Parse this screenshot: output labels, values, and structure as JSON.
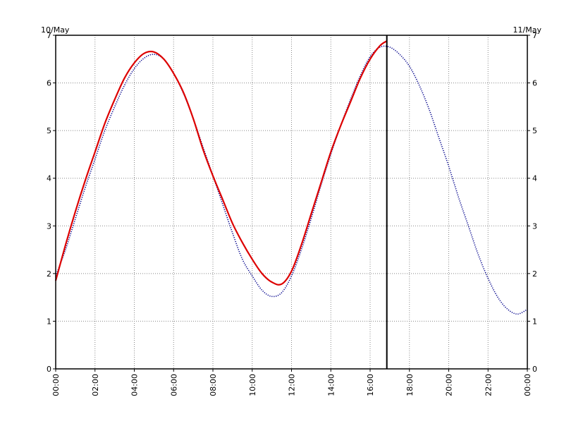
{
  "chart_data": {
    "type": "line",
    "date_left": "10/May",
    "date_right": "11/May",
    "xlim": [
      0,
      24
    ],
    "ylim": [
      0,
      7
    ],
    "x_ticks": [
      "00:00",
      "02:00",
      "04:00",
      "06:00",
      "08:00",
      "10:00",
      "12:00",
      "14:00",
      "16:00",
      "18:00",
      "20:00",
      "22:00",
      "00:00"
    ],
    "y_ticks": [
      "0",
      "1",
      "2",
      "3",
      "4",
      "5",
      "6",
      "7"
    ],
    "grid": true,
    "now_marker_x": 16.85,
    "series": [
      {
        "color": "#dd0000",
        "style": "solid",
        "x": [
          0,
          0.5,
          1,
          1.5,
          2,
          2.5,
          3,
          3.5,
          4,
          4.5,
          5,
          5.5,
          6,
          6.5,
          7,
          7.5,
          8,
          8.5,
          9,
          9.5,
          10,
          10.5,
          11,
          11.5,
          12,
          12.5,
          13,
          13.5,
          14,
          14.5,
          15,
          15.5,
          16,
          16.5,
          16.85
        ],
        "y": [
          1.85,
          2.6,
          3.3,
          3.95,
          4.55,
          5.15,
          5.65,
          6.1,
          6.42,
          6.62,
          6.65,
          6.5,
          6.2,
          5.8,
          5.25,
          4.6,
          4.05,
          3.55,
          3.05,
          2.65,
          2.3,
          2.0,
          1.82,
          1.78,
          2.05,
          2.6,
          3.25,
          3.9,
          4.55,
          5.1,
          5.6,
          6.1,
          6.5,
          6.78,
          6.88
        ]
      },
      {
        "color": "#00008b",
        "style": "dotted",
        "x": [
          0,
          0.5,
          1,
          1.5,
          2,
          2.5,
          3,
          3.5,
          4,
          4.5,
          5,
          5.5,
          6,
          6.5,
          7,
          7.5,
          8,
          8.5,
          9,
          9.5,
          10,
          10.5,
          11,
          11.5,
          12,
          12.5,
          13,
          13.5,
          14,
          14.5,
          15,
          15.5,
          16,
          16.5,
          17,
          17.5,
          18,
          18.5,
          19,
          19.5,
          20,
          20.5,
          21,
          21.5,
          22,
          22.5,
          23,
          23.5,
          24
        ],
        "y": [
          1.95,
          2.5,
          3.15,
          3.8,
          4.4,
          5.0,
          5.5,
          5.95,
          6.3,
          6.52,
          6.6,
          6.5,
          6.2,
          5.78,
          5.25,
          4.65,
          4.05,
          3.45,
          2.85,
          2.3,
          1.95,
          1.65,
          1.52,
          1.6,
          1.95,
          2.5,
          3.15,
          3.85,
          4.5,
          5.1,
          5.65,
          6.15,
          6.55,
          6.75,
          6.75,
          6.6,
          6.35,
          5.95,
          5.45,
          4.85,
          4.25,
          3.6,
          3.0,
          2.4,
          1.9,
          1.5,
          1.25,
          1.15,
          1.25
        ]
      }
    ]
  }
}
